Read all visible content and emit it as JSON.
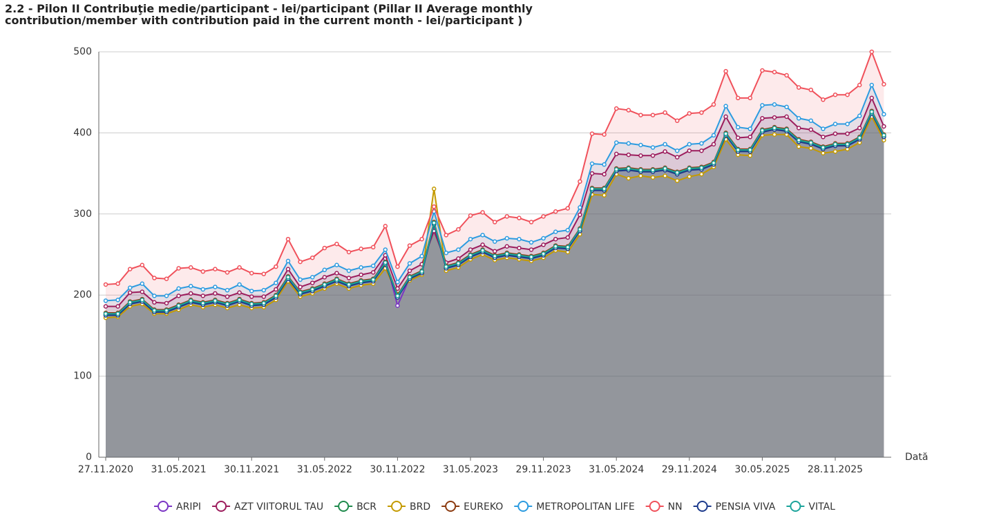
{
  "chart_data": {
    "type": "line",
    "title": "2.2 - Pilon II Contribuţie  medie/participant - lei/participant (Pillar II Average monthly contribution/member with contribution paid in the current month - lei/participant )",
    "x_label": "Dată",
    "categories": [
      "27.11.2020",
      null,
      null,
      null,
      null,
      null,
      "31.05.2021",
      null,
      null,
      null,
      null,
      null,
      "30.11.2021",
      null,
      null,
      null,
      null,
      null,
      "31.05.2022",
      null,
      null,
      null,
      null,
      null,
      "30.11.2022",
      null,
      null,
      null,
      null,
      null,
      "31.05.2023",
      null,
      null,
      null,
      null,
      null,
      "29.11.2023",
      null,
      null,
      null,
      null,
      null,
      "31.05.2024",
      null,
      null,
      null,
      null,
      null,
      "29.11.2024",
      null,
      null,
      null,
      null,
      null,
      "30.05.2025",
      null,
      null,
      null,
      null,
      null,
      "28.11.2025",
      null,
      null,
      null,
      null
    ],
    "ylim": [
      0,
      500
    ],
    "yticks": [
      0,
      100,
      200,
      300,
      400,
      500
    ],
    "grid": true,
    "legend": "bottom",
    "series": [
      {
        "name": "ARIPI",
        "color": "#7b35c4",
        "values": [
          176,
          176,
          190,
          193,
          180,
          180,
          186,
          192,
          189,
          192,
          188,
          193,
          188,
          189,
          198,
          221,
          202,
          206,
          212,
          218,
          212,
          216,
          218,
          245,
          187,
          221,
          228,
          288,
          234,
          238,
          248,
          254,
          247,
          250,
          248,
          246,
          250,
          259,
          258,
          280,
          330,
          330,
          354,
          355,
          353,
          353,
          355,
          350,
          355,
          356,
          362,
          398,
          378,
          378,
          402,
          405,
          403,
          390,
          387,
          381,
          385,
          385,
          393,
          425,
          396
        ]
      },
      {
        "name": "AZT VIITORUL TAU",
        "color": "#9c1c5c",
        "values": [
          186,
          186,
          203,
          204,
          191,
          190,
          199,
          202,
          199,
          202,
          198,
          203,
          198,
          198,
          207,
          232,
          210,
          215,
          222,
          227,
          221,
          225,
          228,
          249,
          208,
          230,
          238,
          279,
          240,
          245,
          256,
          262,
          254,
          260,
          258,
          256,
          262,
          269,
          271,
          299,
          350,
          349,
          374,
          373,
          372,
          372,
          377,
          370,
          378,
          378,
          386,
          420,
          394,
          395,
          418,
          419,
          420,
          406,
          404,
          395,
          399,
          399,
          406,
          443,
          408
        ]
      },
      {
        "name": "BCR",
        "color": "#1e8a4c",
        "values": [
          176,
          176,
          190,
          193,
          180,
          180,
          186,
          192,
          189,
          192,
          188,
          193,
          188,
          189,
          198,
          221,
          202,
          206,
          212,
          218,
          212,
          216,
          218,
          239,
          198,
          221,
          228,
          288,
          234,
          238,
          248,
          254,
          247,
          250,
          248,
          246,
          250,
          259,
          258,
          280,
          330,
          330,
          354,
          355,
          353,
          353,
          355,
          350,
          355,
          356,
          362,
          398,
          378,
          378,
          402,
          405,
          403,
          390,
          387,
          381,
          385,
          385,
          393,
          425,
          396
        ]
      },
      {
        "name": "BRD",
        "color": "#c49a00",
        "values": [
          172,
          173,
          186,
          189,
          177,
          177,
          182,
          188,
          185,
          188,
          184,
          188,
          184,
          185,
          194,
          217,
          198,
          202,
          208,
          214,
          208,
          212,
          214,
          233,
          201,
          218,
          225,
          331,
          230,
          234,
          244,
          250,
          243,
          246,
          244,
          242,
          246,
          255,
          253,
          275,
          324,
          323,
          349,
          344,
          347,
          345,
          347,
          341,
          346,
          349,
          358,
          392,
          373,
          372,
          397,
          398,
          398,
          383,
          381,
          375,
          377,
          380,
          388,
          420,
          391
        ]
      },
      {
        "name": "EUREKO",
        "color": "#8b3a0f",
        "values": [
          178,
          178,
          192,
          195,
          182,
          182,
          188,
          194,
          191,
          194,
          190,
          195,
          190,
          191,
          200,
          223,
          204,
          208,
          214,
          220,
          214,
          218,
          220,
          241,
          200,
          223,
          230,
          290,
          236,
          240,
          250,
          256,
          249,
          252,
          250,
          248,
          252,
          261,
          260,
          282,
          332,
          332,
          356,
          357,
          355,
          355,
          357,
          352,
          357,
          358,
          364,
          400,
          380,
          380,
          404,
          407,
          405,
          392,
          389,
          383,
          387,
          387,
          395,
          427,
          398
        ]
      },
      {
        "name": "METROPOLITAN LIFE",
        "color": "#2b9be0",
        "values": [
          193,
          194,
          209,
          214,
          199,
          199,
          208,
          211,
          207,
          210,
          206,
          213,
          205,
          206,
          215,
          242,
          219,
          222,
          231,
          237,
          230,
          234,
          236,
          256,
          216,
          239,
          248,
          303,
          252,
          256,
          269,
          274,
          266,
          270,
          269,
          265,
          270,
          278,
          280,
          308,
          362,
          361,
          388,
          387,
          385,
          382,
          386,
          378,
          386,
          387,
          397,
          433,
          407,
          405,
          434,
          435,
          432,
          418,
          415,
          405,
          411,
          411,
          421,
          459,
          423
        ]
      },
      {
        "name": "NN",
        "color": "#f0505a",
        "values": [
          213,
          214,
          232,
          237,
          221,
          220,
          233,
          234,
          229,
          232,
          228,
          234,
          227,
          226,
          235,
          269,
          241,
          246,
          258,
          263,
          253,
          257,
          259,
          285,
          235,
          261,
          269,
          309,
          274,
          281,
          298,
          302,
          290,
          297,
          295,
          290,
          297,
          303,
          307,
          340,
          399,
          398,
          430,
          428,
          422,
          422,
          425,
          415,
          424,
          425,
          435,
          476,
          443,
          443,
          477,
          475,
          471,
          456,
          453,
          441,
          447,
          447,
          459,
          500,
          460
        ]
      },
      {
        "name": "PENSIA VIVA",
        "color": "#1c3a8c",
        "values": [
          175,
          175,
          189,
          192,
          179,
          179,
          185,
          191,
          188,
          191,
          187,
          192,
          187,
          188,
          197,
          220,
          201,
          205,
          211,
          217,
          211,
          215,
          217,
          238,
          197,
          220,
          227,
          287,
          233,
          237,
          247,
          253,
          246,
          249,
          247,
          245,
          249,
          258,
          257,
          279,
          329,
          329,
          353,
          354,
          352,
          352,
          354,
          349,
          354,
          355,
          361,
          397,
          377,
          377,
          401,
          404,
          402,
          389,
          386,
          380,
          384,
          384,
          392,
          424,
          395
        ]
      },
      {
        "name": "VITAL",
        "color": "#1aa39a",
        "values": [
          177,
          177,
          191,
          194,
          181,
          181,
          187,
          193,
          190,
          193,
          189,
          194,
          189,
          190,
          199,
          222,
          203,
          207,
          213,
          219,
          213,
          217,
          219,
          240,
          199,
          222,
          229,
          289,
          235,
          239,
          249,
          255,
          248,
          251,
          249,
          247,
          251,
          260,
          259,
          281,
          331,
          331,
          355,
          356,
          354,
          354,
          356,
          351,
          356,
          357,
          363,
          399,
          379,
          379,
          403,
          406,
          404,
          391,
          388,
          382,
          386,
          386,
          394,
          426,
          397
        ]
      }
    ]
  }
}
